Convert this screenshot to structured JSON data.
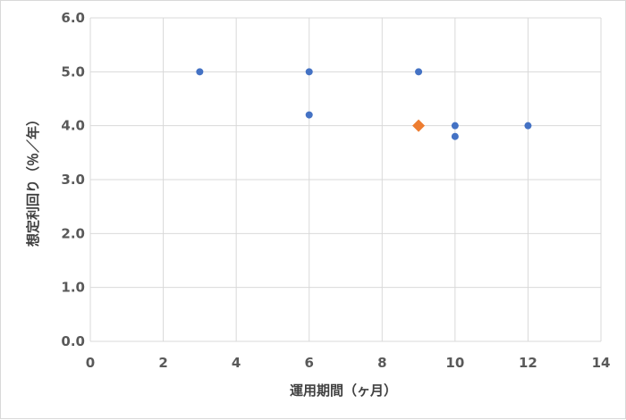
{
  "chart_data": {
    "type": "scatter",
    "xlabel": "運用期間（ヶ月）",
    "ylabel": "想定利回り（％／年）",
    "xlim": [
      0,
      14
    ],
    "ylim": [
      0,
      6
    ],
    "x_ticks": [
      0,
      2,
      4,
      6,
      8,
      10,
      12,
      14
    ],
    "x_tick_labels": [
      "0",
      "2",
      "4",
      "6",
      "8",
      "10",
      "12",
      "14"
    ],
    "y_ticks": [
      0,
      1,
      2,
      3,
      4,
      5,
      6
    ],
    "y_tick_labels": [
      "0.0",
      "1.0",
      "2.0",
      "3.0",
      "4.0",
      "5.0",
      "6.0"
    ],
    "grid": true,
    "legend": "none",
    "series": [
      {
        "marker": "circle",
        "color": "#4472c4",
        "points": [
          {
            "x": 3,
            "y": 5.0
          },
          {
            "x": 6,
            "y": 5.0
          },
          {
            "x": 6,
            "y": 4.2
          },
          {
            "x": 9,
            "y": 5.0
          },
          {
            "x": 10,
            "y": 4.0
          },
          {
            "x": 10,
            "y": 3.8
          },
          {
            "x": 12,
            "y": 4.0
          }
        ]
      },
      {
        "marker": "diamond",
        "color": "#ed7d31",
        "points": [
          {
            "x": 9,
            "y": 4.0
          }
        ]
      }
    ]
  }
}
